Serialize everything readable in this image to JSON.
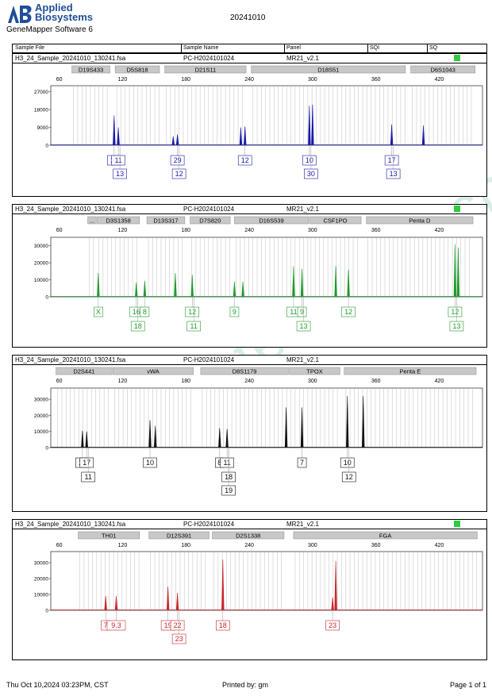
{
  "header": {
    "brand_line1": "Applied",
    "brand_line2": "Biosystems",
    "app_name": "GeneMapper Software 6",
    "date": "20241010"
  },
  "columns": {
    "sample_file": "Sample File",
    "sample_name": "Sample Name",
    "panel": "Panel",
    "sqi": "SQI",
    "sq": "SQ"
  },
  "row_info": {
    "file": "H3_24_Sample_20241010_130241.fsa",
    "name": "PC-H2024101024",
    "panel": "MR21_v2.1"
  },
  "axis_ticks": [
    "60",
    "120",
    "180",
    "240",
    "300",
    "360",
    "420"
  ],
  "panels": [
    {
      "color": "#1a1aa6",
      "ylim": [
        0,
        30000
      ],
      "y_ticks": [
        "0",
        "9000",
        "18000",
        "27000"
      ],
      "markers": [
        "D19S433",
        "D5S818",
        "D21S11",
        "D18S51",
        "D6S1043"
      ],
      "peaks": [
        [
          112,
          15000
        ],
        [
          116,
          9000
        ],
        [
          168,
          4500
        ],
        [
          172,
          5500
        ],
        [
          232,
          9000
        ],
        [
          236,
          9500
        ],
        [
          297,
          20000
        ],
        [
          300,
          20500
        ],
        [
          375,
          10500
        ],
        [
          405,
          10000
        ]
      ],
      "alleles_row1": [
        "12",
        "11",
        "29",
        "12",
        "10",
        "17"
      ],
      "alleles_row2": [
        "13",
        "12",
        "30",
        "13"
      ]
    },
    {
      "color": "#1e9a2c",
      "ylim": [
        0,
        35000
      ],
      "y_ticks": [
        "0",
        "10000",
        "20000",
        "30000"
      ],
      "markers": [
        "...",
        "D3S1358",
        "D13S317",
        "D7S820",
        "D16S539",
        "CSF1PO",
        "Penta D"
      ],
      "peaks": [
        [
          97,
          14000
        ],
        [
          133,
          8500
        ],
        [
          141,
          9500
        ],
        [
          170,
          14000
        ],
        [
          186,
          13000
        ],
        [
          226,
          9000
        ],
        [
          234,
          9000
        ],
        [
          282,
          18000
        ],
        [
          290,
          16500
        ],
        [
          322,
          18000
        ],
        [
          334,
          16000
        ],
        [
          435,
          31000
        ],
        [
          438,
          29000
        ]
      ],
      "alleles_row1": [
        "X",
        "16",
        "8",
        "12",
        "9",
        "11",
        "9",
        "12",
        "12"
      ],
      "alleles_row2": [
        "18",
        "11",
        "13",
        "13"
      ]
    },
    {
      "color": "#111111",
      "ylim": [
        0,
        37000
      ],
      "y_ticks": [
        "0",
        "10000",
        "20000",
        "30000"
      ],
      "markers": [
        "D2S441",
        "vWA",
        "D8S1179",
        "TPOX",
        "Penta E"
      ],
      "peaks": [
        [
          82,
          10500
        ],
        [
          86,
          10000
        ],
        [
          146,
          17000
        ],
        [
          151,
          13500
        ],
        [
          212,
          12000
        ],
        [
          219,
          11500
        ],
        [
          275,
          25000
        ],
        [
          290,
          25000
        ],
        [
          333,
          32000
        ],
        [
          348,
          32000
        ]
      ],
      "alleles_row1": [
        "10",
        "17",
        "10",
        "8",
        "11",
        "7",
        "10"
      ],
      "alleles_row2": [
        "11",
        "18",
        "12"
      ],
      "alleles_row3": [
        "19"
      ]
    },
    {
      "color": "#c8262a",
      "ylim": [
        0,
        37000
      ],
      "y_ticks": [
        "0",
        "10000",
        "20000",
        "30000"
      ],
      "markers": [
        "TH01",
        "D12S391",
        "D2S1338",
        "FGA"
      ],
      "peaks": [
        [
          104,
          9000
        ],
        [
          114,
          9000
        ],
        [
          163,
          15000
        ],
        [
          172,
          11000
        ],
        [
          215,
          32000
        ],
        [
          319,
          8000
        ],
        [
          322,
          31000
        ]
      ],
      "alleles_row1": [
        "7",
        "9.3",
        "19",
        "22",
        "18",
        "23"
      ],
      "alleles_row2": [
        "23"
      ]
    }
  ],
  "footer": {
    "timestamp": "Thu Oct 10,2024 03:23PM, CST",
    "printed_by": "Printed by: gm",
    "page": "Page 1 of 1"
  },
  "watermark": "www.proteck.com.cn"
}
